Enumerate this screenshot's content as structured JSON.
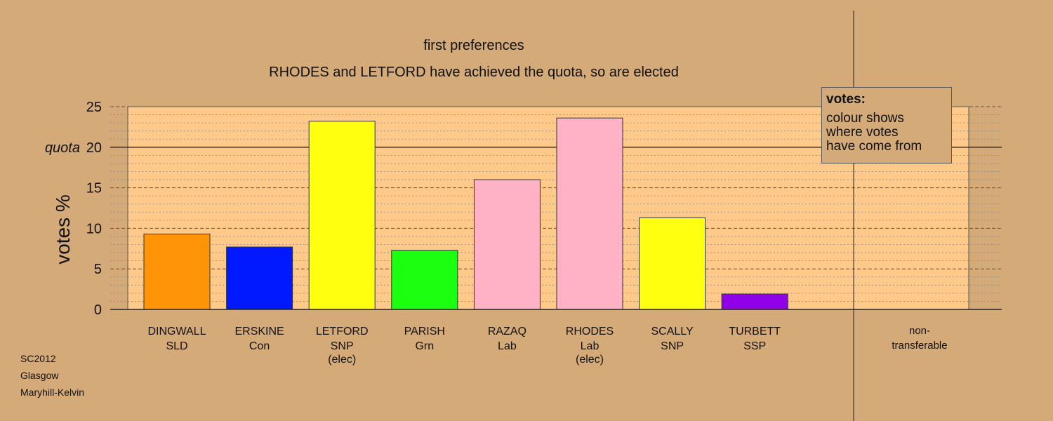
{
  "chart_data": {
    "type": "bar",
    "title": "first preferences",
    "subtitle": "RHODES and LETFORD have achieved the quota, so are elected",
    "ylabel": "votes %",
    "ylim": [
      0,
      25
    ],
    "yticks": [
      0,
      5,
      10,
      15,
      20,
      25
    ],
    "quota": 20,
    "quota_label": "quota",
    "grid": true,
    "categories": [
      {
        "name": "DINGWALL",
        "party": "SLD",
        "note": "",
        "value": 9.3,
        "color": "#ff9408"
      },
      {
        "name": "ERSKINE",
        "party": "Con",
        "note": "",
        "value": 7.7,
        "color": "#0019ff"
      },
      {
        "name": "LETFORD",
        "party": "SNP",
        "note": "(elec)",
        "value": 23.2,
        "color": "#ffff10"
      },
      {
        "name": "PARISH",
        "party": "Grn",
        "note": "",
        "value": 7.3,
        "color": "#1bff10"
      },
      {
        "name": "RAZAQ",
        "party": "Lab",
        "note": "",
        "value": 16.0,
        "color": "#ffb1c6"
      },
      {
        "name": "RHODES",
        "party": "Lab",
        "note": "(elec)",
        "value": 23.6,
        "color": "#ffb1c6"
      },
      {
        "name": "SCALLY",
        "party": "SNP",
        "note": "",
        "value": 11.3,
        "color": "#ffff10"
      },
      {
        "name": "TURBETT",
        "party": "SSP",
        "note": "",
        "value": 1.9,
        "color": "#9000e8"
      }
    ],
    "non_transferable": {
      "label_line1": "non-",
      "label_line2": "transferable",
      "value": 0
    },
    "legend": {
      "title": "votes:",
      "lines": [
        "colour shows",
        "where votes",
        "have come from"
      ],
      "placement": "top-right"
    }
  },
  "footer": {
    "line1": "SC2012",
    "line2": "Glasgow",
    "line3": "Maryhill-Kelvin"
  },
  "colors": {
    "background": "#d4aa78",
    "plot_area": "#ffc98a"
  }
}
